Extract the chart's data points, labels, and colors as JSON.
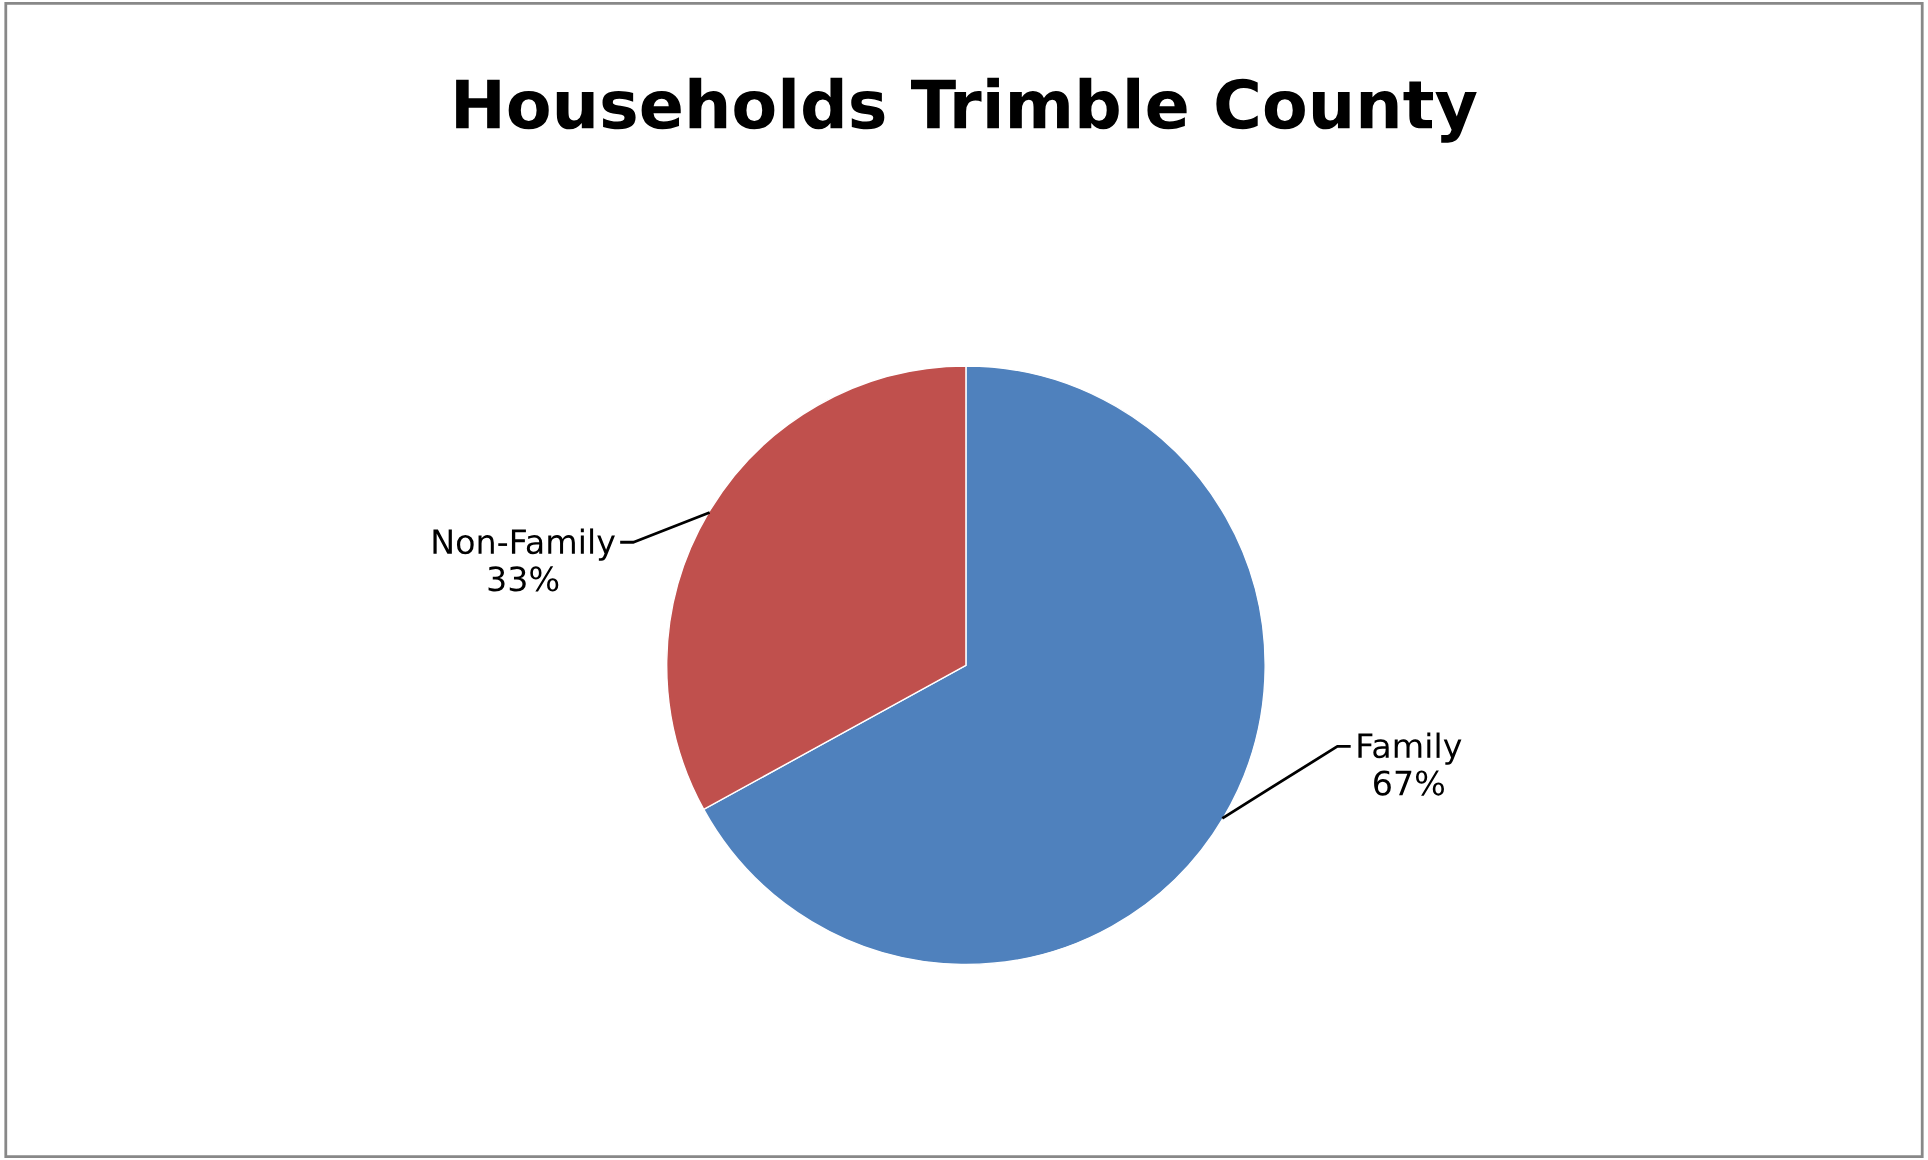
{
  "chart_data": {
    "type": "pie",
    "title": "Households Trimble County",
    "categories": [
      "Family",
      "Non-Family"
    ],
    "values": [
      67,
      33
    ],
    "colors": [
      "#4f81bd",
      "#c0504d"
    ],
    "value_labels": [
      "67%",
      "33%"
    ],
    "legend": false
  }
}
